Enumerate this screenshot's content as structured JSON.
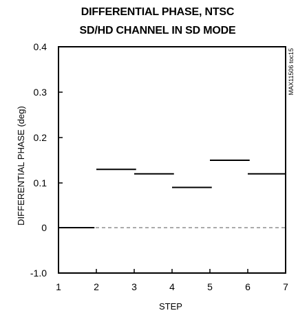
{
  "chart_data": {
    "type": "line",
    "title": [
      "DIFFERENTIAL PHASE, NTSC",
      "SD/HD CHANNEL IN SD MODE"
    ],
    "xlabel": "STEP",
    "ylabel": "DIFFERENTIAL PHASE (deg)",
    "side_note": "MAX11506 toc15",
    "x_ticks": [
      1,
      2,
      3,
      4,
      5,
      6,
      7
    ],
    "y_ticks": [
      {
        "value": -1.0,
        "label": "-1.0"
      },
      {
        "value": 0,
        "label": "0"
      },
      {
        "value": 0.1,
        "label": "0.1"
      },
      {
        "value": 0.2,
        "label": "0.2"
      },
      {
        "value": 0.3,
        "label": "0.3"
      },
      {
        "value": 0.4,
        "label": "0.4"
      }
    ],
    "ylim": [
      -1.0,
      0.4
    ],
    "xlim": [
      1,
      7
    ],
    "grid": false,
    "reference_line": {
      "y": 0,
      "style": "dashed"
    },
    "segments": [
      {
        "x": [
          1.0,
          1.95
        ],
        "y": 0.0
      },
      {
        "x": [
          2.0,
          3.05
        ],
        "y": 0.13
      },
      {
        "x": [
          3.0,
          4.05
        ],
        "y": 0.12
      },
      {
        "x": [
          4.0,
          5.05
        ],
        "y": 0.09
      },
      {
        "x": [
          5.0,
          6.05
        ],
        "y": 0.15
      },
      {
        "x": [
          6.0,
          7.0
        ],
        "y": 0.12
      }
    ]
  }
}
